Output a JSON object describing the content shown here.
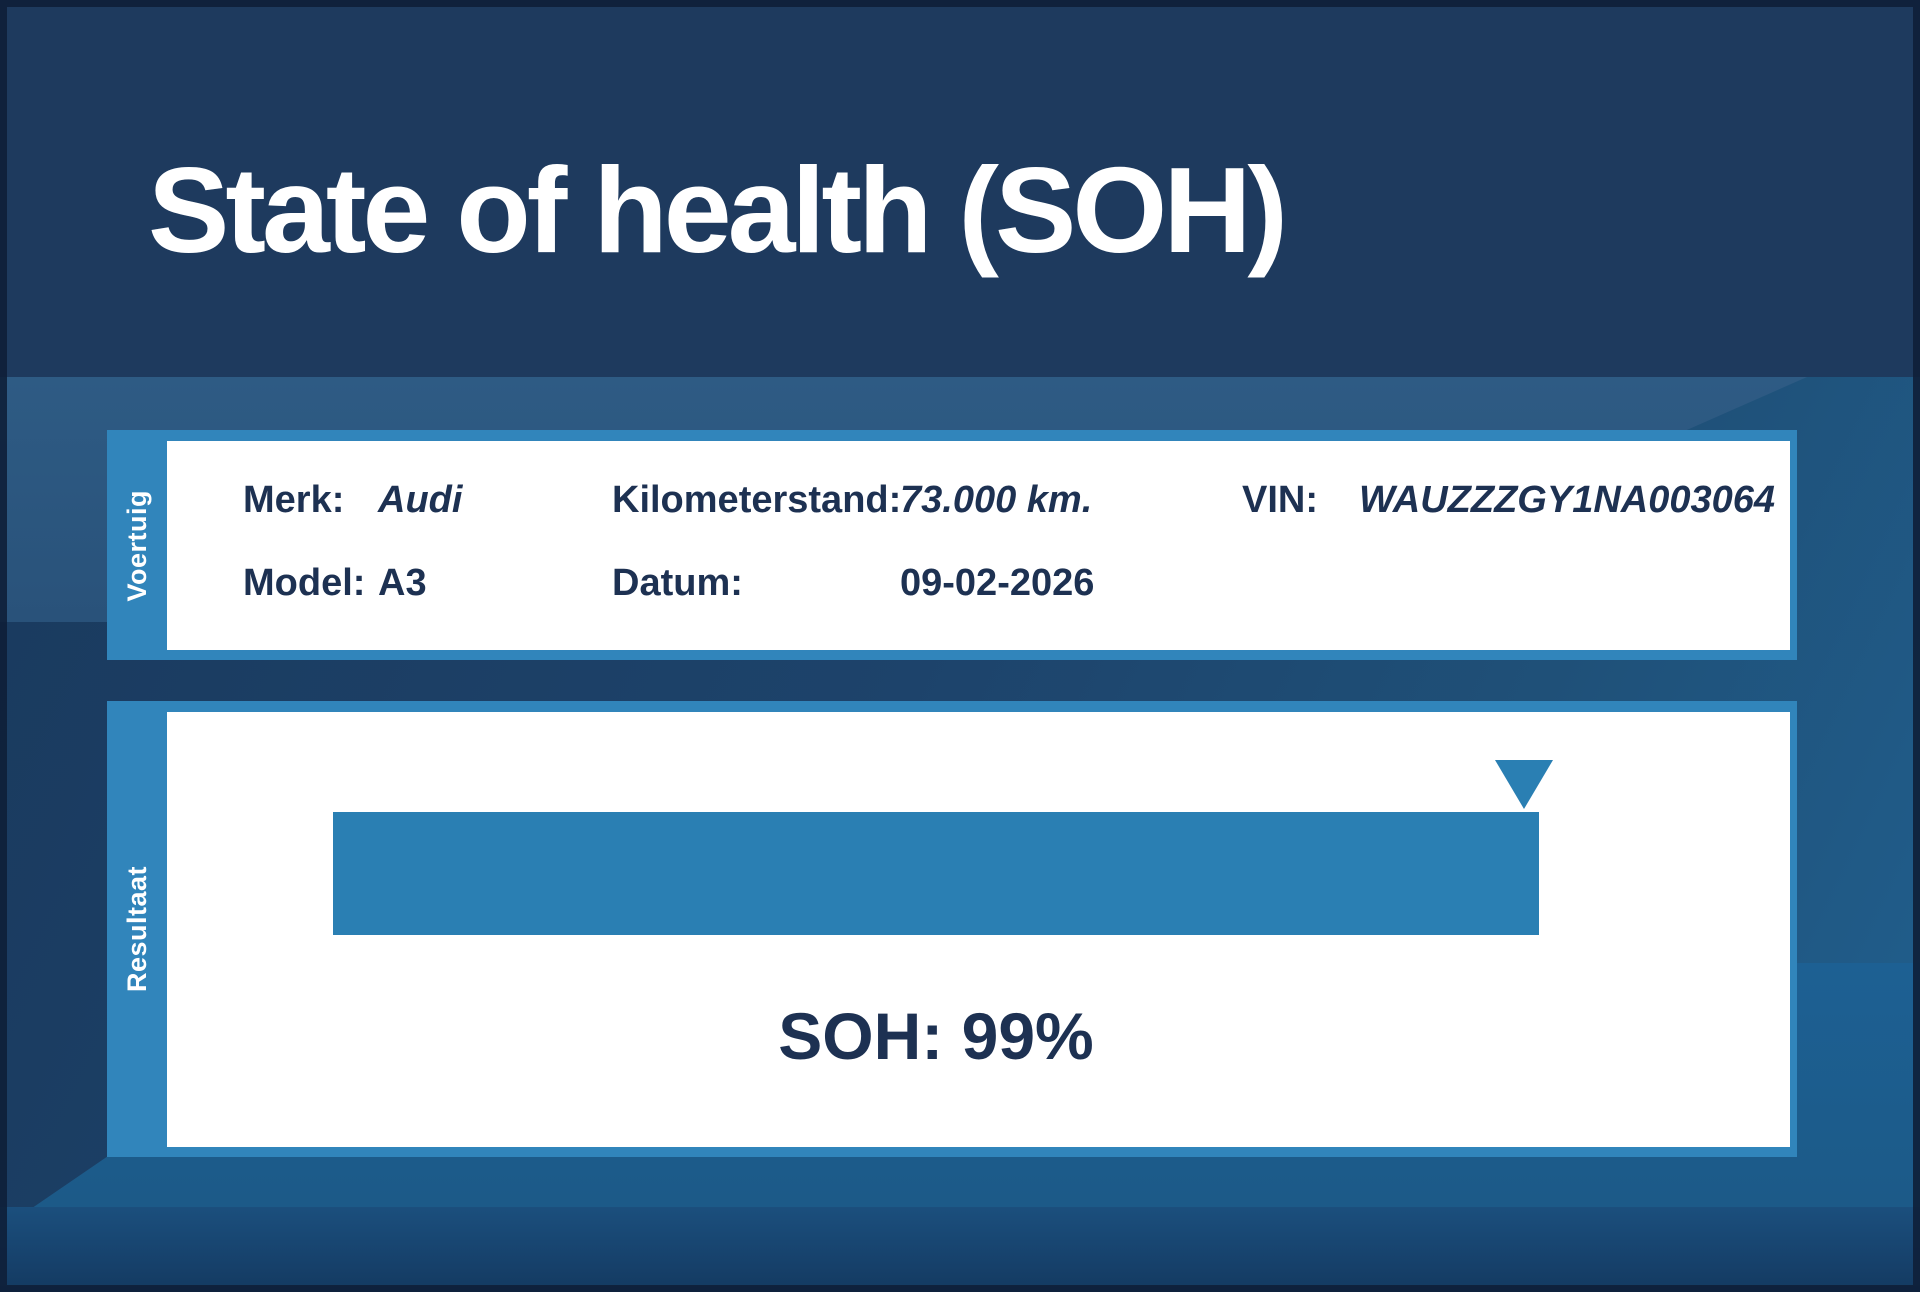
{
  "report": {
    "title": "State of health (SOH)",
    "vehicle": {
      "sidebar_label": "Voertuig",
      "merk_label": "Merk:",
      "merk_value": "Audi",
      "model_label": "Model:",
      "model_value": "A3",
      "km_label": "Kilometerstand:",
      "km_value": "73.000 km.",
      "datum_label": "Datum:",
      "datum_value": "09-02-2026",
      "vin_label": "VIN:",
      "vin_value": "WAUZZZGY1NA003064"
    },
    "result": {
      "sidebar_label": "Resultaat",
      "soh_text": "SOH: 99%",
      "soh_percent": 99
    }
  },
  "chart_data": {
    "type": "bar",
    "title": "SOH gauge",
    "categories": [
      "SOH"
    ],
    "values": [
      99
    ],
    "unit": "%",
    "xlim": [
      0,
      100
    ],
    "orientation": "horizontal",
    "marker": "triangle-at-value",
    "annotation": "SOH: 99%"
  },
  "colors": {
    "header_navy": "#1e3a5e",
    "band_steel_blue": "#2b567f",
    "band_bottom_blue": "#1d6093",
    "card_border_blue": "#3185bb",
    "bar_blue": "#2a7fb3",
    "text_navy": "#1d3152",
    "title_white": "#ffffff"
  }
}
